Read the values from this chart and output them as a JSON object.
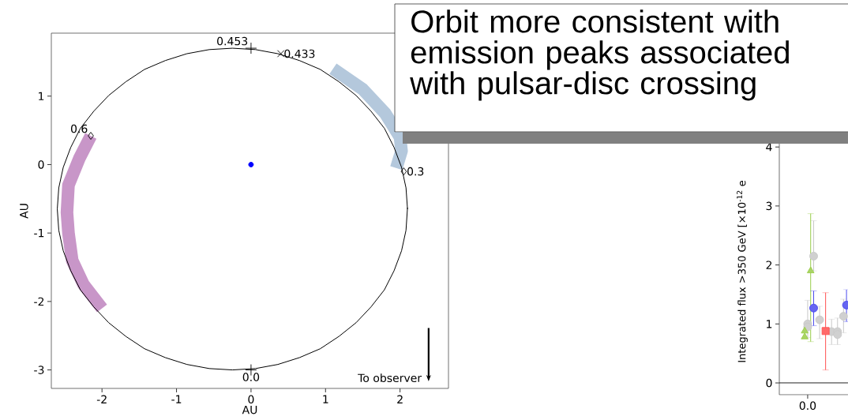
{
  "chart_data": [
    {
      "type": "line",
      "xlabel": "AU",
      "ylabel": "AU",
      "xlim": [
        -2.68,
        2.65
      ],
      "ylim": [
        -3.27,
        1.92
      ],
      "xticks": [
        -2,
        -1,
        0,
        1,
        2
      ],
      "yticks": [
        -3,
        -2,
        -1,
        0,
        1
      ],
      "series": [
        {
          "type": "line",
          "color": "#c896c8",
          "x": [
            -2.15,
            -2.3,
            -2.45,
            -2.47,
            -2.45,
            -2.4,
            -2.25,
            -2.0
          ],
          "values": [
            0.42,
            0.1,
            -0.3,
            -0.7,
            -1.0,
            -1.4,
            -1.75,
            -2.1
          ]
        },
        {
          "type": "line",
          "color": "#b4c8dc",
          "x": [
            1.1,
            1.5,
            1.8,
            2.0,
            2.02,
            1.95
          ],
          "values": [
            1.4,
            1.1,
            0.75,
            0.4,
            0.2,
            -0.05
          ]
        },
        {
          "type": "line",
          "color": "#000000",
          "x": [
            2.1,
            2.08,
            2.02,
            1.92,
            1.79,
            1.61,
            1.41,
            1.18,
            0.93,
            0.65,
            0.36,
            0.06,
            -0.25,
            -0.56,
            -0.86,
            -1.15,
            -1.43,
            -1.68,
            -1.91,
            -2.11,
            -2.29,
            -2.42,
            -2.52,
            -2.58,
            -2.6,
            -2.58,
            -2.52,
            -2.42,
            -2.29,
            -2.11,
            -1.91,
            -1.68,
            -1.43,
            -1.15,
            -0.86,
            -0.56,
            -0.25,
            0.06,
            0.36,
            0.65,
            0.93,
            1.18,
            1.41,
            1.61,
            1.79,
            1.92,
            2.02,
            2.08,
            2.1
          ],
          "values": [
            -0.65,
            -0.34,
            -0.04,
            0.25,
            0.53,
            0.78,
            1.01,
            1.21,
            1.39,
            1.52,
            1.62,
            1.68,
            1.7,
            1.68,
            1.62,
            1.52,
            1.39,
            1.21,
            1.01,
            0.78,
            0.53,
            0.25,
            -0.04,
            -0.34,
            -0.65,
            -0.96,
            -1.26,
            -1.55,
            -1.83,
            -2.08,
            -2.31,
            -2.51,
            -2.69,
            -2.82,
            -2.92,
            -2.98,
            -3.0,
            -2.98,
            -2.92,
            -2.82,
            -2.69,
            -2.51,
            -2.31,
            -2.08,
            -1.83,
            -1.55,
            -1.26,
            -0.96,
            -0.63
          ]
        },
        {
          "type": "scatter",
          "color": "#000000",
          "marker": "plus",
          "x": [
            0,
            0
          ],
          "values": [
            1.7,
            -3.0
          ]
        },
        {
          "type": "scatter",
          "color": "#000000",
          "marker": "cross",
          "x": [
            0.4
          ],
          "values": [
            1.62
          ]
        },
        {
          "type": "scatter",
          "color": "#000000",
          "marker": "diamond",
          "x": [
            -2.15,
            2.05
          ],
          "values": [
            0.42,
            -0.1
          ]
        },
        {
          "type": "scatter",
          "color": "#0000ff",
          "marker": "circle",
          "x": [
            0
          ],
          "values": [
            0
          ]
        }
      ],
      "annotations": [
        {
          "text": "0.453",
          "x": 0,
          "y": 1.7
        },
        {
          "text": "0.433",
          "x": 0.4,
          "y": 1.62
        },
        {
          "text": "0.6",
          "x": -2.15,
          "y": 0.42
        },
        {
          "text": "0.3",
          "x": 2.05,
          "y": -0.1
        },
        {
          "text": "0.0",
          "x": 0,
          "y": -3.0
        },
        "To observer",
        "Orbit more consistent with emission peaks associated with pulsar-disc crossing"
      ]
    },
    {
      "type": "scatter",
      "ylabel": "Integrated flux >350 GeV [×10$^{-12}$ e",
      "categories": [
        null,
        null,
        null,
        null,
        null,
        null,
        null,
        null,
        null,
        "0.0",
        null,
        null,
        null,
        null,
        null,
        null,
        null,
        null,
        null,
        null,
        null,
        null,
        null
      ],
      "ylim": [
        -0.2,
        4.15
      ],
      "yticks": [
        0,
        1,
        2,
        3,
        4
      ],
      "ref_lines": [
        {
          "axis": "y",
          "value": 0,
          "color": "#000000"
        }
      ],
      "series": [
        {
          "color": "#c8c8c8",
          "marker": "circle",
          "values": [
            null,
            null,
            null,
            null,
            null,
            null,
            null,
            null,
            null,
            1.0,
            null,
            2.15,
            null,
            1.07,
            null,
            null,
            null,
            0.87,
            null,
            0.87,
            null,
            1.13,
            null
          ],
          "errors": [
            null,
            null,
            null,
            null,
            null,
            null,
            null,
            null,
            null,
            [
              0.77,
              1.4
            ],
            null,
            [
              1.9,
              2.75
            ],
            null,
            [
              0.75,
              1.3
            ],
            null,
            null,
            null,
            [
              0.65,
              1.08
            ],
            null,
            [
              0.65,
              1.1
            ],
            null,
            [
              0.85,
              1.42
            ],
            null
          ]
        },
        {
          "color": "#c8c8c8",
          "marker": "circle",
          "values": [
            null,
            null,
            null,
            null,
            null,
            null,
            null,
            null,
            null,
            0.95,
            null,
            null,
            null,
            null,
            null,
            null,
            null,
            null,
            null,
            0.82,
            null,
            null,
            null
          ]
        },
        {
          "color": "#9acd4a",
          "marker": "triangle",
          "values": [
            null,
            null,
            null,
            null,
            null,
            null,
            null,
            null,
            0.88,
            null,
            null,
            null,
            null,
            null,
            null,
            null,
            null,
            null,
            null,
            null,
            null,
            null,
            null
          ]
        },
        {
          "color": "#9acd4a",
          "marker": "triangle",
          "values": [
            null,
            null,
            null,
            null,
            null,
            null,
            null,
            null,
            0.78,
            null,
            null,
            null,
            null,
            null,
            null,
            null,
            null,
            null,
            null,
            null,
            null,
            null,
            null
          ]
        },
        {
          "color": "#9acd4a",
          "marker": "triangle",
          "values": [
            null,
            null,
            null,
            null,
            null,
            null,
            null,
            null,
            null,
            null,
            1.9,
            null,
            null,
            null,
            null,
            null,
            null,
            null,
            null,
            null,
            null,
            null,
            null
          ],
          "errors": [
            null,
            null,
            null,
            null,
            null,
            null,
            null,
            null,
            null,
            null,
            [
              0.7,
              2.87
            ],
            null,
            null,
            null,
            null,
            null,
            null,
            null,
            null,
            null,
            null,
            null,
            null
          ]
        },
        {
          "color": "#4a4aee",
          "marker": "circle",
          "values": [
            null,
            null,
            null,
            null,
            null,
            null,
            null,
            null,
            null,
            null,
            null,
            1.27,
            null,
            null,
            null,
            null,
            null,
            null,
            null,
            null,
            null,
            null,
            1.32
          ],
          "errors": [
            null,
            null,
            null,
            null,
            null,
            null,
            null,
            null,
            null,
            null,
            null,
            [
              0.97,
              1.56
            ],
            null,
            null,
            null,
            null,
            null,
            null,
            null,
            null,
            null,
            null,
            [
              1.04,
              1.58
            ]
          ]
        },
        {
          "color": "#ff5050",
          "marker": "square",
          "values": [
            null,
            null,
            null,
            null,
            null,
            null,
            null,
            null,
            null,
            null,
            null,
            null,
            null,
            null,
            null,
            0.88,
            null,
            null,
            null,
            null,
            null,
            null,
            null
          ],
          "errors": [
            null,
            null,
            null,
            null,
            null,
            null,
            null,
            null,
            null,
            null,
            null,
            null,
            null,
            null,
            null,
            [
              0.22,
              1.53
            ],
            null,
            null,
            null,
            null,
            null,
            null,
            null
          ]
        }
      ]
    }
  ]
}
